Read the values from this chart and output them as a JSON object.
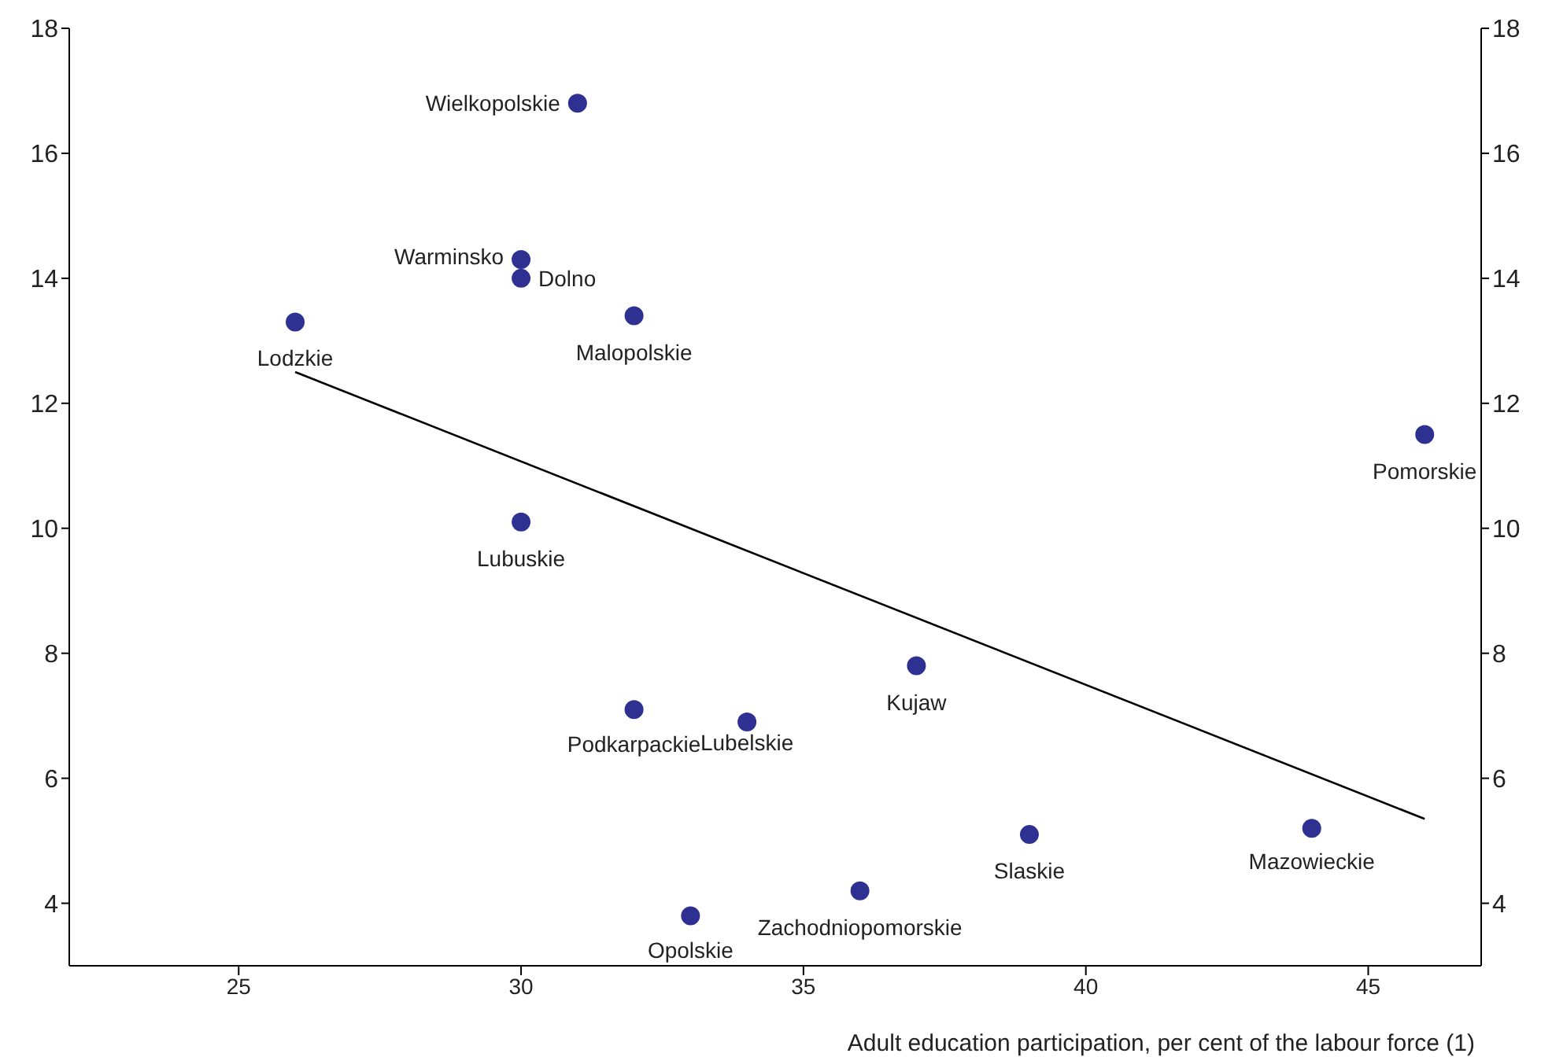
{
  "chart_data": {
    "type": "scatter",
    "xlabel": "Adult education participation, per cent of the labour force (1)",
    "xlim": [
      22,
      47
    ],
    "xticks": [
      25,
      30,
      35,
      40,
      45
    ],
    "ylim": [
      3,
      18
    ],
    "yticks": [
      4,
      6,
      8,
      10,
      12,
      14,
      16,
      18
    ],
    "y2lim": [
      3,
      18
    ],
    "y2ticks": [
      4,
      6,
      8,
      10,
      12,
      14,
      16,
      18
    ],
    "marker": "circle",
    "series": [
      {
        "color": "#2e3192",
        "x": [
          31,
          30,
          30,
          26,
          32,
          46,
          30,
          37,
          32,
          34,
          39,
          44,
          36,
          33
        ],
        "values": [
          16.8,
          14.3,
          14.0,
          13.3,
          13.4,
          11.5,
          10.1,
          7.8,
          7.1,
          6.9,
          5.1,
          5.2,
          4.2,
          3.8
        ]
      },
      {
        "type": "line",
        "marker": "none",
        "color": "#000000",
        "x": [
          26,
          46
        ],
        "values": [
          12.5,
          5.35
        ]
      }
    ],
    "annotations": [
      {
        "text": "Wielkopolskie",
        "x": 31,
        "y": 16.8
      },
      {
        "text": "Warminsko",
        "x": 30,
        "y": 14.3
      },
      {
        "text": "Dolno",
        "x": 30,
        "y": 14.0
      },
      {
        "text": "Lodzkie",
        "x": 26,
        "y": 13.3
      },
      {
        "text": "Malopolskie",
        "x": 32,
        "y": 13.4
      },
      {
        "text": "Pomorskie",
        "x": 46,
        "y": 11.5
      },
      {
        "text": "Lubuskie",
        "x": 30,
        "y": 10.1
      },
      {
        "text": "Kujaw",
        "x": 37,
        "y": 7.8
      },
      {
        "text": "Podkarpackie",
        "x": 32,
        "y": 7.1
      },
      {
        "text": "Lubelskie",
        "x": 34,
        "y": 6.9
      },
      {
        "text": "Slaskie",
        "x": 39,
        "y": 5.1
      },
      {
        "text": "Mazowieckie",
        "x": 44,
        "y": 5.2
      },
      {
        "text": "Zachodniopomorskie",
        "x": 36,
        "y": 4.2
      },
      {
        "text": "Opolskie",
        "x": 33,
        "y": 3.8
      }
    ]
  }
}
